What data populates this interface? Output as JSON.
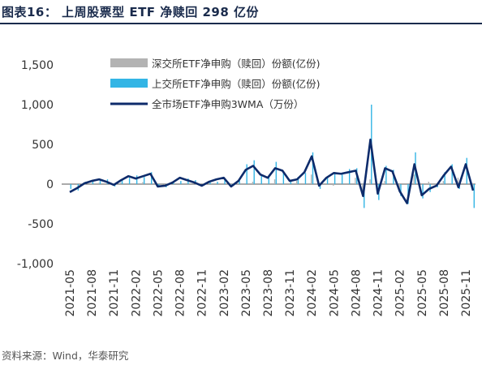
{
  "figure": {
    "title": "图表16：  上周股票型 ETF 净赎回 298 亿份",
    "source": "资料来源：Wind，华泰研究"
  },
  "colors": {
    "title": "#1a2b4c",
    "shenzhen_bar": "#b3b3b3",
    "shanghai_bar": "#33b5e5",
    "line": "#0d2b6b",
    "zero_line": "#555555"
  },
  "chart_data": {
    "type": "bar",
    "title": "",
    "xlabel": "",
    "ylabel": "",
    "ylim": [
      -1000,
      1500
    ],
    "yticks": [
      1500,
      1000,
      500,
      0,
      -500,
      -1000
    ],
    "ytick_labels": [
      "1,500",
      "1,000",
      "500",
      "0",
      "-500",
      "-1,000"
    ],
    "x_range": [
      "2021-05",
      "2025-12"
    ],
    "xtick_labels": [
      "2021-05",
      "2021-08",
      "2021-11",
      "2022-02",
      "2022-05",
      "2022-08",
      "2022-11",
      "2023-02",
      "2023-05",
      "2023-08",
      "2023-11",
      "2024-02",
      "2024-05",
      "2024-08",
      "2024-11",
      "2025-02",
      "2025-05",
      "2025-08",
      "2025-11"
    ],
    "legend_position": "top",
    "grid": false,
    "series": [
      {
        "name": "深交所ETF净申购（赎回）份额(亿份)",
        "type": "bar",
        "points": [
          [
            "2021-06",
            10
          ],
          [
            "2021-09",
            15
          ],
          [
            "2021-12",
            20
          ],
          [
            "2022-03",
            25
          ],
          [
            "2022-06",
            -10
          ],
          [
            "2022-09",
            15
          ],
          [
            "2022-12",
            20
          ],
          [
            "2023-03",
            -5
          ],
          [
            "2023-06",
            30
          ],
          [
            "2023-09",
            60
          ],
          [
            "2023-12",
            40
          ],
          [
            "2024-02",
            120
          ],
          [
            "2024-05",
            -20
          ],
          [
            "2024-08",
            80
          ],
          [
            "2024-09",
            -150
          ],
          [
            "2024-10",
            60
          ],
          [
            "2024-12",
            40
          ],
          [
            "2025-02",
            -60
          ],
          [
            "2025-04",
            120
          ],
          [
            "2025-06",
            30
          ],
          [
            "2025-08",
            40
          ],
          [
            "2025-10",
            80
          ],
          [
            "2025-12",
            -80
          ]
        ]
      },
      {
        "name": "上交所ETF净申购（赎回）份额(亿份)",
        "type": "bar",
        "points": [
          [
            "2021-05",
            -60
          ],
          [
            "2021-06",
            -80
          ],
          [
            "2021-07",
            30
          ],
          [
            "2021-08",
            50
          ],
          [
            "2021-09",
            40
          ],
          [
            "2021-10",
            60
          ],
          [
            "2021-11",
            -30
          ],
          [
            "2021-12",
            50
          ],
          [
            "2022-01",
            80
          ],
          [
            "2022-02",
            110
          ],
          [
            "2022-03",
            90
          ],
          [
            "2022-04",
            150
          ],
          [
            "2022-05",
            -20
          ],
          [
            "2022-06",
            -40
          ],
          [
            "2022-07",
            20
          ],
          [
            "2022-08",
            40
          ],
          [
            "2022-09",
            70
          ],
          [
            "2022-10",
            50
          ],
          [
            "2022-11",
            -20
          ],
          [
            "2022-12",
            20
          ],
          [
            "2023-01",
            30
          ],
          [
            "2023-02",
            60
          ],
          [
            "2023-03",
            -20
          ],
          [
            "2023-04",
            40
          ],
          [
            "2023-05",
            250
          ],
          [
            "2023-06",
            300
          ],
          [
            "2023-07",
            120
          ],
          [
            "2023-08",
            90
          ],
          [
            "2023-09",
            280
          ],
          [
            "2023-10",
            150
          ],
          [
            "2023-11",
            40
          ],
          [
            "2023-12",
            90
          ],
          [
            "2024-01",
            140
          ],
          [
            "2024-02",
            400
          ],
          [
            "2024-03",
            -60
          ],
          [
            "2024-04",
            90
          ],
          [
            "2024-05",
            150
          ],
          [
            "2024-06",
            120
          ],
          [
            "2024-07",
            190
          ],
          [
            "2024-08",
            200
          ],
          [
            "2024-09",
            -300
          ],
          [
            "2024-10",
            1000
          ],
          [
            "2024-11",
            -200
          ],
          [
            "2024-12",
            230
          ],
          [
            "2025-01",
            180
          ],
          [
            "2025-02",
            -150
          ],
          [
            "2025-03",
            -250
          ],
          [
            "2025-04",
            400
          ],
          [
            "2025-05",
            -180
          ],
          [
            "2025-06",
            -100
          ],
          [
            "2025-07",
            -40
          ],
          [
            "2025-08",
            150
          ],
          [
            "2025-09",
            250
          ],
          [
            "2025-10",
            -60
          ],
          [
            "2025-11",
            330
          ],
          [
            "2025-12",
            -300
          ]
        ]
      },
      {
        "name": "全市场ETF净申购3WMA（万份）",
        "type": "line",
        "points": [
          [
            "2021-05",
            -100
          ],
          [
            "2021-06",
            -50
          ],
          [
            "2021-07",
            10
          ],
          [
            "2021-08",
            40
          ],
          [
            "2021-09",
            60
          ],
          [
            "2021-10",
            30
          ],
          [
            "2021-11",
            -10
          ],
          [
            "2021-12",
            50
          ],
          [
            "2022-01",
            100
          ],
          [
            "2022-02",
            70
          ],
          [
            "2022-03",
            100
          ],
          [
            "2022-04",
            130
          ],
          [
            "2022-05",
            -30
          ],
          [
            "2022-06",
            -20
          ],
          [
            "2022-07",
            20
          ],
          [
            "2022-08",
            80
          ],
          [
            "2022-09",
            50
          ],
          [
            "2022-10",
            20
          ],
          [
            "2022-11",
            -20
          ],
          [
            "2022-12",
            30
          ],
          [
            "2023-01",
            60
          ],
          [
            "2023-02",
            80
          ],
          [
            "2023-03",
            -30
          ],
          [
            "2023-04",
            40
          ],
          [
            "2023-05",
            180
          ],
          [
            "2023-06",
            230
          ],
          [
            "2023-07",
            120
          ],
          [
            "2023-08",
            80
          ],
          [
            "2023-09",
            200
          ],
          [
            "2023-10",
            170
          ],
          [
            "2023-11",
            40
          ],
          [
            "2023-12",
            60
          ],
          [
            "2024-01",
            150
          ],
          [
            "2024-02",
            350
          ],
          [
            "2024-03",
            -20
          ],
          [
            "2024-04",
            80
          ],
          [
            "2024-05",
            140
          ],
          [
            "2024-06",
            130
          ],
          [
            "2024-07",
            150
          ],
          [
            "2024-08",
            170
          ],
          [
            "2024-09",
            -150
          ],
          [
            "2024-10",
            560
          ],
          [
            "2024-11",
            -120
          ],
          [
            "2024-12",
            200
          ],
          [
            "2025-01",
            160
          ],
          [
            "2025-02",
            -90
          ],
          [
            "2025-03",
            -240
          ],
          [
            "2025-04",
            250
          ],
          [
            "2025-05",
            -140
          ],
          [
            "2025-06",
            -60
          ],
          [
            "2025-07",
            -20
          ],
          [
            "2025-08",
            110
          ],
          [
            "2025-09",
            220
          ],
          [
            "2025-10",
            -40
          ],
          [
            "2025-11",
            250
          ],
          [
            "2025-12",
            -80
          ]
        ]
      }
    ]
  }
}
